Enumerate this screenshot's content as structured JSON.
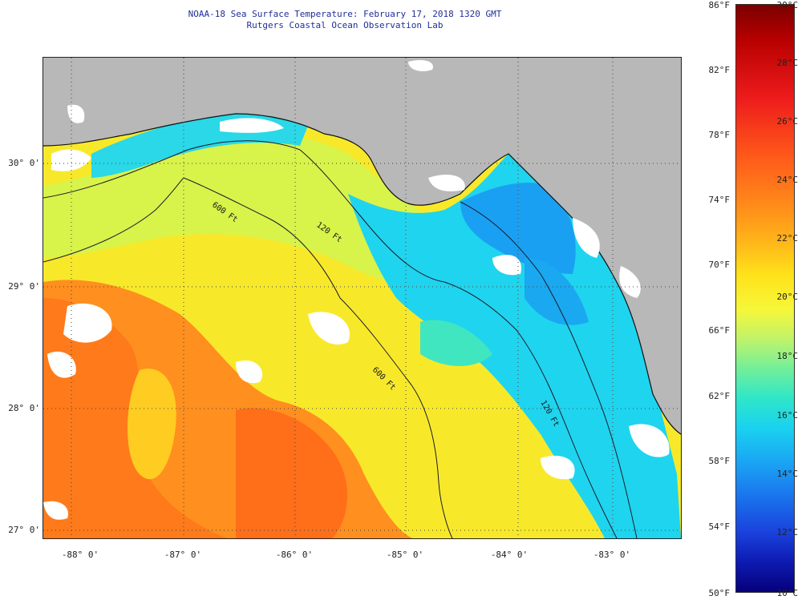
{
  "title": {
    "line1": "NOAA-18 Sea Surface Temperature:  February 17, 2018 1320 GMT",
    "line2": "Rutgers Coastal Ocean Observation Lab"
  },
  "latitude_labels": [
    "30° 0'",
    "29° 0'",
    "28° 0'",
    "27° 0'"
  ],
  "longitude_labels": [
    "-88° 0'",
    "-87° 0'",
    "-86° 0'",
    "-85° 0'",
    "-84° 0'",
    "-83° 0'"
  ],
  "isobath_labels": [
    "600 Ft",
    "120 Ft",
    "600 Ft",
    "120 Ft"
  ],
  "colorbar": {
    "fahrenheit": [
      "86°F",
      "82°F",
      "78°F",
      "74°F",
      "70°F",
      "66°F",
      "62°F",
      "58°F",
      "54°F",
      "50°F"
    ],
    "celsius": [
      "30°C",
      "28°C",
      "26°C",
      "24°C",
      "22°C",
      "20°C",
      "18°C",
      "16°C",
      "14°C",
      "12°C",
      "10°C"
    ]
  },
  "colors": {
    "land": "#b8b8b8",
    "cloud": "#ffffff",
    "warm": "#ff7a1a",
    "mid": "#f2ef2a",
    "cool": "#1ad2ef",
    "cold": "#1a40dc"
  }
}
